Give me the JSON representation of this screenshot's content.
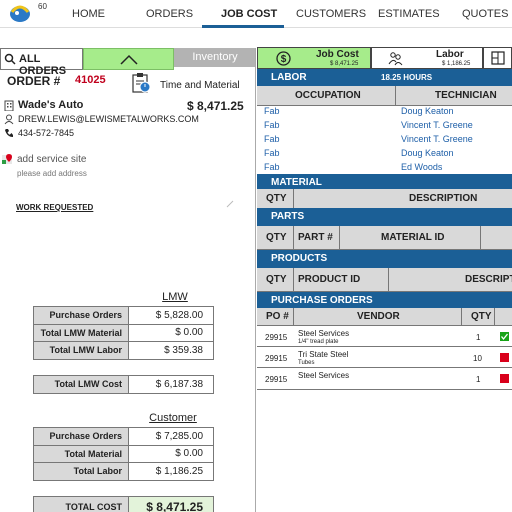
{
  "nav": {
    "badge": "60",
    "items": [
      "HOME",
      "ORDERS",
      "JOB COST",
      "CUSTOMERS",
      "ESTIMATES",
      "QUOTES"
    ]
  },
  "left_tabs": {
    "all_orders": "ALL ORDERS",
    "inventory": "Inventory"
  },
  "order": {
    "label": "ORDER #",
    "number": "41025",
    "type": "Time and Material",
    "customer": "Wade's Auto",
    "total": "$ 8,471.25",
    "email": "DREW.LEWIS@LEWISMETALWORKS.COM",
    "phone": "434-572-7845",
    "add_site": "add service site",
    "add_address": "please add address",
    "work_requested": "WORK REQUESTED"
  },
  "lmw": {
    "title": "LMW",
    "rows": [
      {
        "label": "Purchase Orders",
        "value": "$ 5,828.00"
      },
      {
        "label": "Total LMW Material",
        "value": "$ 0.00"
      },
      {
        "label": "Total LMW Labor",
        "value": "$ 359.38"
      }
    ],
    "total_label": "Total LMW Cost",
    "total_value": "$ 6,187.38"
  },
  "customer": {
    "title": "Customer",
    "rows": [
      {
        "label": "Purchase Orders",
        "value": "$ 7,285.00"
      },
      {
        "label": "Total Material",
        "value": "$ 0.00"
      },
      {
        "label": "Total Labor",
        "value": "$ 1,186.25"
      }
    ],
    "total_label": "TOTAL COST",
    "total_value": "$ 8,471.25"
  },
  "right_tabs": {
    "job_cost": {
      "label": "Job Cost",
      "value": "$ 8,471.25"
    },
    "labor": {
      "label": "Labor",
      "value": "$ 1,186.25"
    }
  },
  "labor": {
    "title": "LABOR",
    "hours": "18.25 HOURS",
    "col_occupation": "OCCUPATION",
    "col_technician": "TECHNICIAN",
    "rows": [
      {
        "occupation": "Fab",
        "technician": "Doug Keaton"
      },
      {
        "occupation": "Fab",
        "technician": "Vincent T. Greene"
      },
      {
        "occupation": "Fab",
        "technician": "Vincent T. Greene"
      },
      {
        "occupation": "Fab",
        "technician": "Doug Keaton"
      },
      {
        "occupation": "Fab",
        "technician": "Ed Woods"
      }
    ]
  },
  "material": {
    "title": "MATERIAL",
    "col_qty": "QTY",
    "col_desc": "DESCRIPTION"
  },
  "parts": {
    "title": "PARTS",
    "col_qty": "QTY",
    "col_part": "PART #",
    "col_mat": "MATERIAL ID"
  },
  "products": {
    "title": "PRODUCTS",
    "col_qty": "QTY",
    "col_prod": "PRODUCT ID",
    "col_desc": "DESCRIPTI"
  },
  "purchase_orders": {
    "title": "PURCHASE ORDERS",
    "col_po": "PO #",
    "col_vendor": "VENDOR",
    "col_qty": "QTY",
    "rows": [
      {
        "po": "29915",
        "vendor": "Steel Services",
        "sub": "1/4\" tread plate",
        "qty": "1",
        "status": "#17a317"
      },
      {
        "po": "29915",
        "vendor": "Tri State Steel",
        "sub": "Tubes",
        "qty": "10",
        "status": "#d9001b"
      },
      {
        "po": "29915",
        "vendor": "Steel Services",
        "sub": "",
        "qty": "1",
        "status": "#d9001b"
      }
    ]
  },
  "colors": {
    "accent": "#1b5f96",
    "green": "#a6ec8b",
    "order_red": "#c0001d"
  }
}
